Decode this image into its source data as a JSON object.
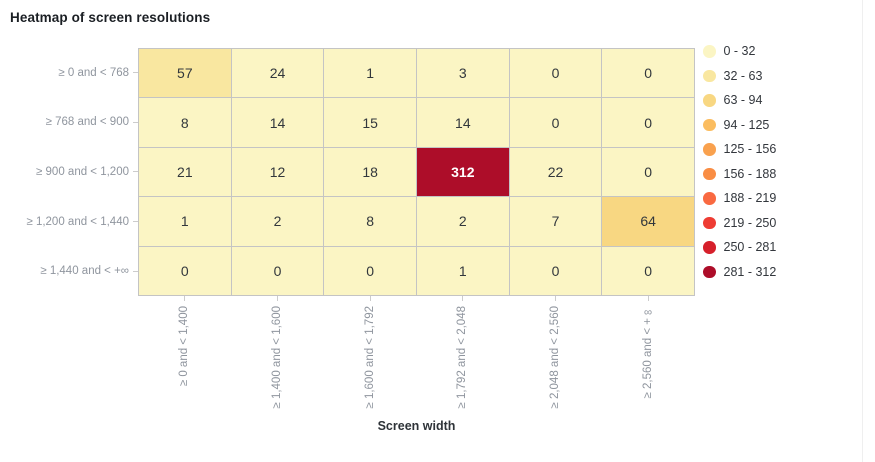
{
  "title": "Heatmap of screen resolutions",
  "chart_data": {
    "type": "heatmap",
    "title": "Heatmap of screen resolutions",
    "xlabel": "Screen width",
    "ylabel": "",
    "x_categories": [
      "≥ 0 and < 1,400",
      "≥ 1,400 and < 1,600",
      "≥ 1,600 and < 1,792",
      "≥ 1,792 and < 2,048",
      "≥ 2,048 and < 2,560",
      "≥ 2,560 and < +∞"
    ],
    "y_categories": [
      "≥ 0 and < 768",
      "≥ 768 and < 900",
      "≥ 900 and < 1,200",
      "≥ 1,200 and < 1,440",
      "≥ 1,440 and < +∞"
    ],
    "values": [
      [
        57,
        24,
        1,
        3,
        0,
        0
      ],
      [
        8,
        14,
        15,
        14,
        0,
        0
      ],
      [
        21,
        12,
        18,
        312,
        22,
        0
      ],
      [
        1,
        2,
        8,
        2,
        7,
        64
      ],
      [
        0,
        0,
        0,
        1,
        0,
        0
      ]
    ],
    "value_range": [
      0,
      312
    ],
    "grid": true,
    "legend_position": "right",
    "legend": [
      {
        "label": "0 - 32",
        "min": 0,
        "color": "#fbf5c4"
      },
      {
        "label": "32 - 63",
        "min": 32,
        "color": "#f9e7a0"
      },
      {
        "label": "63 - 94",
        "min": 63,
        "color": "#f8d782"
      },
      {
        "label": "94 - 125",
        "min": 94,
        "color": "#fbbd60"
      },
      {
        "label": "125 - 156",
        "min": 125,
        "color": "#f9a14e"
      },
      {
        "label": "156 - 188",
        "min": 156,
        "color": "#f98d44"
      },
      {
        "label": "188 - 219",
        "min": 188,
        "color": "#f96941"
      },
      {
        "label": "219 - 250",
        "min": 219,
        "color": "#ee3c33"
      },
      {
        "label": "250 - 281",
        "min": 250,
        "color": "#d6202b"
      },
      {
        "label": "281 - 312",
        "min": 281,
        "color": "#ad0d29"
      }
    ]
  },
  "colors": {
    "cell_border": "#c4c4c4",
    "axis_label": "#8f959e",
    "cell_text": "#32373c",
    "cell_text_inverse": "#ffffff",
    "title_text": "#1b1f24"
  }
}
